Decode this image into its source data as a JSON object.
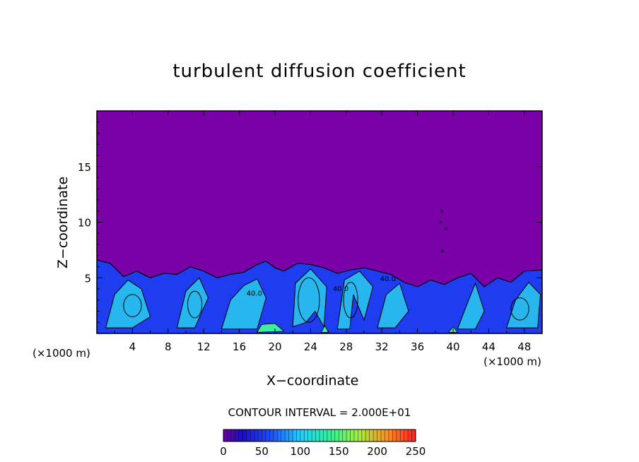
{
  "chart_data": {
    "type": "heatmap",
    "title": "turbulent diffusion coefficient",
    "xlabel": "X−coordinate",
    "ylabel": "Z−coordinate",
    "x_unit_label": "(×1000 m)",
    "x_unit_label_right": "(×1000 m)",
    "xlim": [
      0,
      50
    ],
    "ylim": [
      0,
      20
    ],
    "x_ticks": [
      4,
      8,
      12,
      16,
      20,
      24,
      28,
      32,
      36,
      40,
      44,
      48
    ],
    "y_ticks": [
      5,
      10,
      15
    ],
    "contour_interval_text": "CONTOUR INTERVAL = 2.000E+01",
    "contour_interval": 20,
    "colorbar": {
      "range": [
        0,
        250
      ],
      "ticks": [
        0,
        50,
        100,
        150,
        200,
        250
      ]
    },
    "background_value": 0,
    "colors": {
      "background_field": "#7a00a8",
      "low": "#1a2bff",
      "mid": "#20c8f0",
      "high": "#3cf0a0"
    },
    "contour_labels": [
      {
        "x": 26.5,
        "y": 3.8,
        "text": "40.0"
      },
      {
        "x": 31.8,
        "y": 4.7,
        "text": "40.0"
      },
      {
        "x": 16.8,
        "y": 3.4,
        "text": "40.0"
      }
    ]
  }
}
